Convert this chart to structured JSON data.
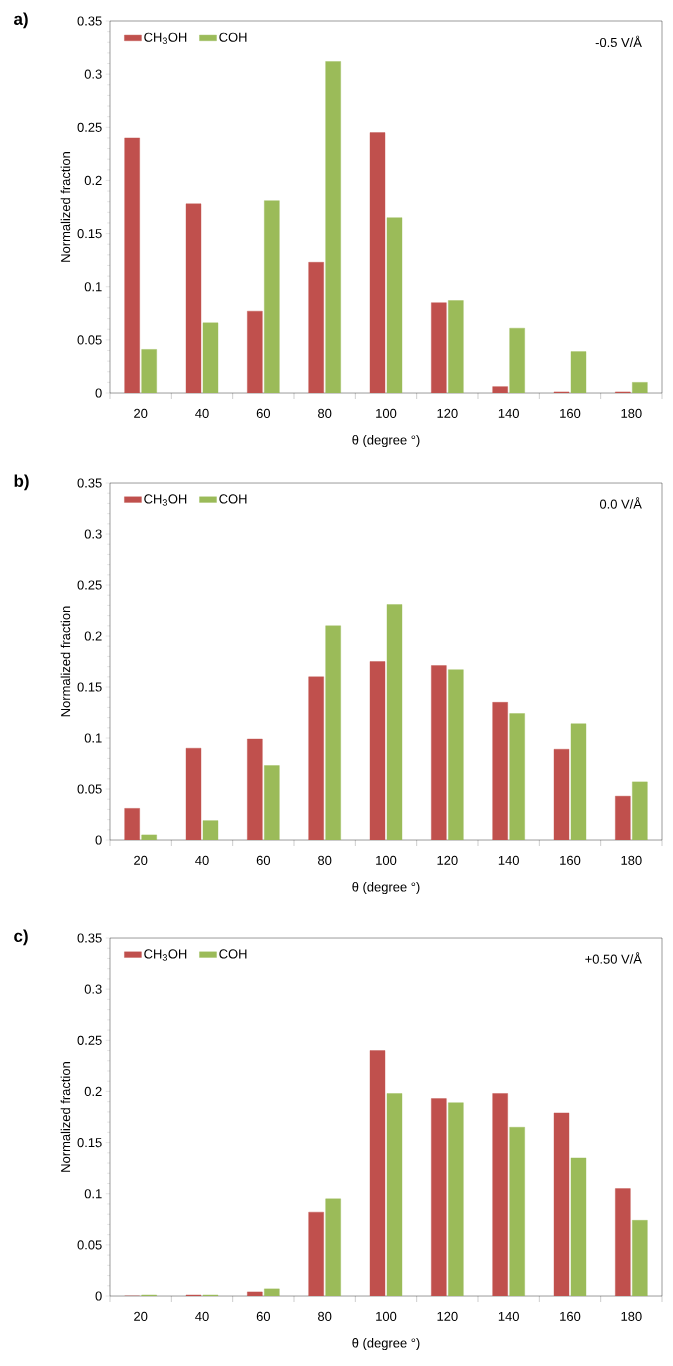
{
  "chart_data": [
    {
      "type": "bar",
      "title": "a)",
      "xlabel": "θ (degree °)",
      "ylabel": "Normalized fraction",
      "annotations": [
        "-0.5 V/Å"
      ],
      "categories": [
        "20",
        "40",
        "60",
        "80",
        "100",
        "120",
        "140",
        "160",
        "180"
      ],
      "ylim": [
        0,
        0.35
      ],
      "yticks": [
        0,
        0.05,
        0.1,
        0.15,
        0.2,
        0.25,
        0.3,
        0.35
      ],
      "legend": "top left",
      "series": [
        {
          "name": "CH$_{3}$OH",
          "color": "#c0504d",
          "values": [
            0.24,
            0.178,
            0.077,
            0.123,
            0.245,
            0.085,
            0.006,
            0.001,
            0.001
          ]
        },
        {
          "name": "COH",
          "color": "#9bbb59",
          "values": [
            0.041,
            0.066,
            0.181,
            0.312,
            0.165,
            0.087,
            0.061,
            0.039,
            0.01
          ]
        }
      ]
    },
    {
      "type": "bar",
      "title": "b)",
      "xlabel": "θ (degree °)",
      "ylabel": "Normalized fraction",
      "annotations": [
        "0.0 V/Å"
      ],
      "categories": [
        "20",
        "40",
        "60",
        "80",
        "100",
        "120",
        "140",
        "160",
        "180"
      ],
      "ylim": [
        0,
        0.35
      ],
      "yticks": [
        0,
        0.05,
        0.1,
        0.15,
        0.2,
        0.25,
        0.3,
        0.35
      ],
      "legend": "top left",
      "series": [
        {
          "name": "CH$_{3}$OH",
          "color": "#c0504d",
          "values": [
            0.031,
            0.09,
            0.099,
            0.16,
            0.175,
            0.171,
            0.135,
            0.089,
            0.043
          ]
        },
        {
          "name": "COH",
          "color": "#9bbb59",
          "values": [
            0.005,
            0.019,
            0.073,
            0.21,
            0.231,
            0.167,
            0.124,
            0.114,
            0.057
          ]
        }
      ]
    },
    {
      "type": "bar",
      "title": "c)",
      "xlabel": "θ (degree °)",
      "ylabel": "Normalized fraction",
      "annotations": [
        "+0.50 V/Å"
      ],
      "categories": [
        "20",
        "40",
        "60",
        "80",
        "100",
        "120",
        "140",
        "160",
        "180"
      ],
      "ylim": [
        0,
        0.35
      ],
      "yticks": [
        0,
        0.05,
        0.1,
        0.15,
        0.2,
        0.25,
        0.3,
        0.35
      ],
      "legend": "top left",
      "series": [
        {
          "name": "CH$_{3}$OH",
          "color": "#c0504d",
          "values": [
            0.0,
            0.001,
            0.004,
            0.082,
            0.24,
            0.193,
            0.198,
            0.179,
            0.105
          ]
        },
        {
          "name": "COH",
          "color": "#9bbb59",
          "values": [
            0.001,
            0.001,
            0.007,
            0.095,
            0.198,
            0.189,
            0.165,
            0.135,
            0.074
          ]
        }
      ]
    }
  ]
}
